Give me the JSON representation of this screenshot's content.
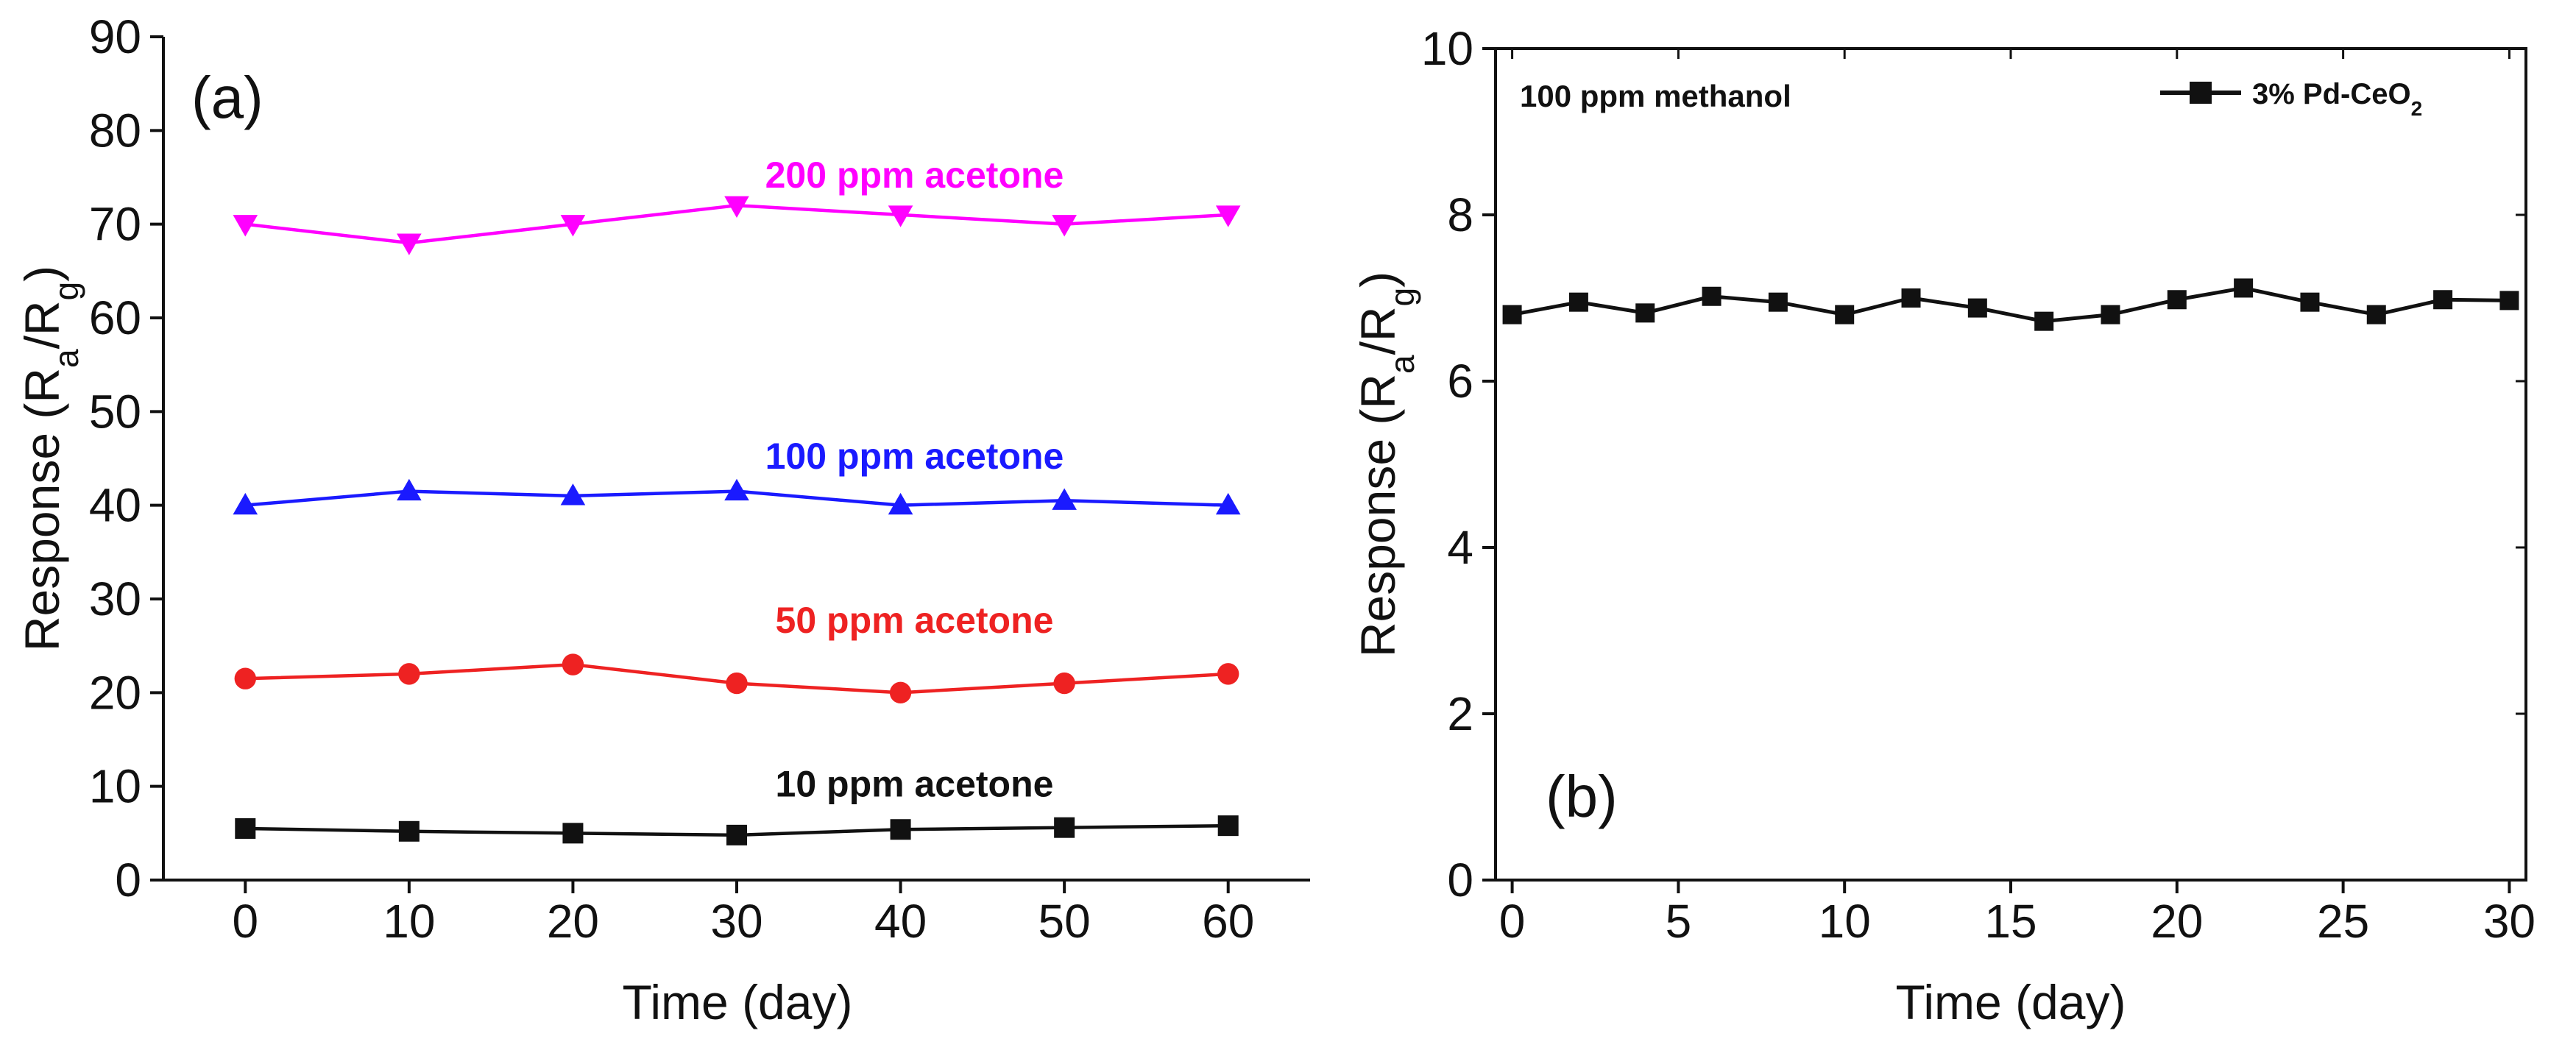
{
  "chart_data": [
    {
      "type": "line",
      "panel_label": "(a)",
      "xlabel": "Time (day)",
      "ylabel": {
        "main": "Response (R",
        "sub_a": "a",
        "slash": "/R",
        "sub_g": "g",
        "close": ")"
      },
      "xlim": [
        -5,
        65
      ],
      "ylim": [
        0,
        90
      ],
      "xticks": [
        0,
        10,
        20,
        30,
        40,
        50,
        60
      ],
      "yticks": [
        0,
        10,
        20,
        30,
        40,
        50,
        60,
        70,
        80,
        90
      ],
      "grid": false,
      "x": [
        0,
        10,
        20,
        30,
        40,
        50,
        60
      ],
      "series": [
        {
          "name": "200 ppm acetone",
          "color": "#ff00ff",
          "marker": "triangle-down",
          "values": [
            70,
            68,
            70,
            72,
            71,
            70,
            71
          ]
        },
        {
          "name": "100 ppm acetone",
          "color": "#1a1aff",
          "marker": "triangle-up",
          "values": [
            40,
            41.5,
            41,
            41.5,
            40,
            40.5,
            40
          ]
        },
        {
          "name": "50 ppm acetone",
          "color": "#ee2222",
          "marker": "circle",
          "values": [
            21.5,
            22,
            23,
            21,
            20,
            21,
            22
          ]
        },
        {
          "name": "10 ppm acetone",
          "color": "#111111",
          "marker": "square",
          "values": [
            5.5,
            5.2,
            5.0,
            4.8,
            5.4,
            5.6,
            5.8
          ]
        }
      ]
    },
    {
      "type": "line",
      "panel_label": "(b)",
      "annotation": "100 ppm methanol",
      "xlabel": "Time (day)",
      "ylabel": {
        "main": "Response (R",
        "sub_a": "a",
        "slash": "/R",
        "sub_g": "g",
        "close": ")"
      },
      "xlim": [
        -0.5,
        30.5
      ],
      "ylim": [
        0,
        10
      ],
      "xticks": [
        0,
        5,
        10,
        15,
        20,
        25,
        30
      ],
      "yticks": [
        0,
        2,
        4,
        6,
        8,
        10
      ],
      "grid": false,
      "legend_position": "top-right",
      "x": [
        0,
        2,
        4,
        6,
        8,
        10,
        12,
        14,
        16,
        18,
        20,
        22,
        24,
        26,
        28,
        30
      ],
      "series": [
        {
          "name": "3% Pd-CeO2",
          "name_parts": {
            "main": "3% Pd-CeO",
            "sub": "2"
          },
          "color": "#111111",
          "marker": "square",
          "values": [
            6.8,
            6.95,
            6.82,
            7.02,
            6.95,
            6.8,
            7.0,
            6.88,
            6.72,
            6.8,
            6.98,
            7.12,
            6.95,
            6.8,
            6.98,
            6.97
          ]
        }
      ]
    }
  ]
}
